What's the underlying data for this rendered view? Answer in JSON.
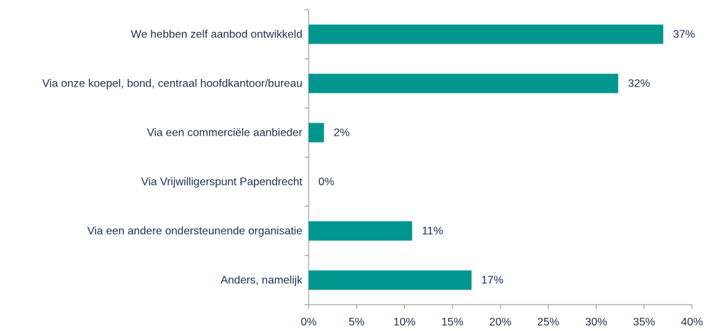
{
  "chart_data": {
    "type": "bar",
    "orientation": "horizontal",
    "categories": [
      "We hebben zelf aanbod ontwikkeld",
      "Via onze koepel, bond, centraal hoofdkantoor/bureau",
      "Via een commerciële aanbieder",
      "Via Vrijwilligerspunt Papendrecht",
      "Via een andere ondersteunende organisatie",
      "Anders, namelijk"
    ],
    "values": [
      37,
      32.3,
      1.6,
      0,
      10.8,
      17
    ],
    "value_labels": [
      "37%",
      "32%",
      "2%",
      "0%",
      "11%",
      "17%"
    ],
    "color": "#009690",
    "xlim": [
      0,
      40
    ],
    "xticks": [
      {
        "value": 0,
        "label": "0%"
      },
      {
        "value": 5,
        "label": "5%"
      },
      {
        "value": 10,
        "label": "10%"
      },
      {
        "value": 15,
        "label": "15%"
      },
      {
        "value": 20,
        "label": "20%"
      },
      {
        "value": 25,
        "label": "25%"
      },
      {
        "value": 30,
        "label": "30%"
      },
      {
        "value": 35,
        "label": "35%"
      },
      {
        "value": 40,
        "label": "40%"
      }
    ],
    "grid": false
  }
}
